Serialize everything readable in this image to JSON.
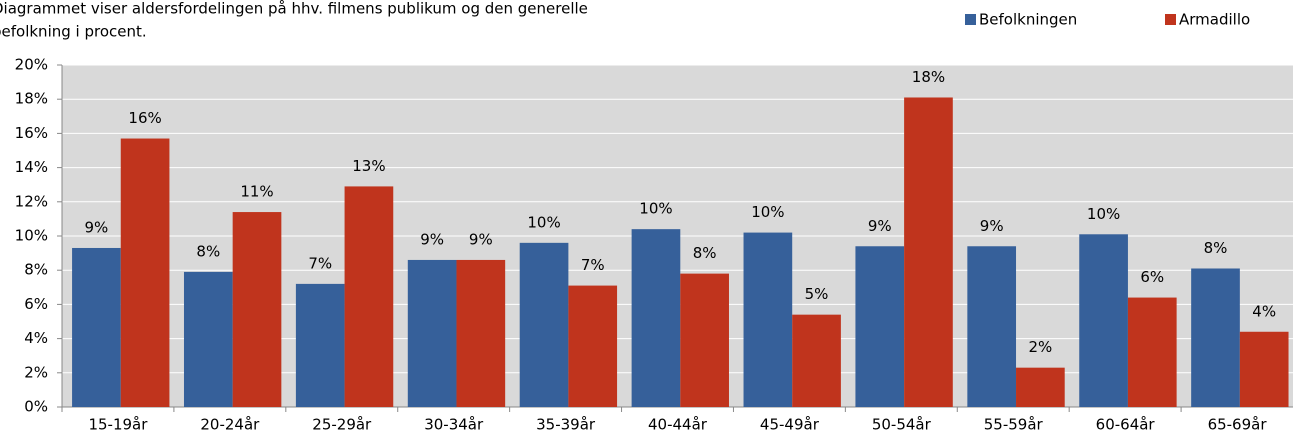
{
  "chart_data": {
    "type": "bar",
    "title": [
      "Diagrammet viser aldersfordelingen på hhv. filmens publikum og den generelle",
      "befolkning i procent."
    ],
    "categories": [
      "15-19år",
      "20-24år",
      "25-29år",
      "30-34år",
      "35-39år",
      "40-44år",
      "45-49år",
      "50-54år",
      "55-59år",
      "60-64år",
      "65-69år"
    ],
    "series": [
      {
        "name": "Befolkningen",
        "color": "#36609a",
        "values": [
          9.3,
          7.9,
          7.2,
          8.6,
          9.6,
          10.4,
          10.2,
          9.4,
          9.4,
          10.1,
          8.1
        ],
        "value_labels": [
          "9%",
          "8%",
          "7%",
          "9%",
          "10%",
          "10%",
          "10%",
          "9%",
          "9%",
          "10%",
          "8%"
        ]
      },
      {
        "name": "Armadillo",
        "color": "#c0341d",
        "values": [
          15.7,
          11.4,
          12.9,
          8.6,
          7.1,
          7.8,
          5.4,
          18.1,
          2.3,
          6.4,
          4.4
        ],
        "value_labels": [
          "16%",
          "11%",
          "13%",
          "9%",
          "7%",
          "8%",
          "5%",
          "18%",
          "2%",
          "6%",
          "4%"
        ]
      }
    ],
    "ylim": [
      0,
      20
    ],
    "yticks": [
      {
        "value": 0,
        "label": "0%"
      },
      {
        "value": 2,
        "label": "2%"
      },
      {
        "value": 4,
        "label": "4%"
      },
      {
        "value": 6,
        "label": "6%"
      },
      {
        "value": 8,
        "label": "8%"
      },
      {
        "value": 10,
        "label": "10%"
      },
      {
        "value": 12,
        "label": "12%"
      },
      {
        "value": 14,
        "label": "14%"
      },
      {
        "value": 16,
        "label": "16%"
      },
      {
        "value": 18,
        "label": "18%"
      },
      {
        "value": 20,
        "label": "20%"
      }
    ],
    "grid": true,
    "legend": "top-right"
  }
}
